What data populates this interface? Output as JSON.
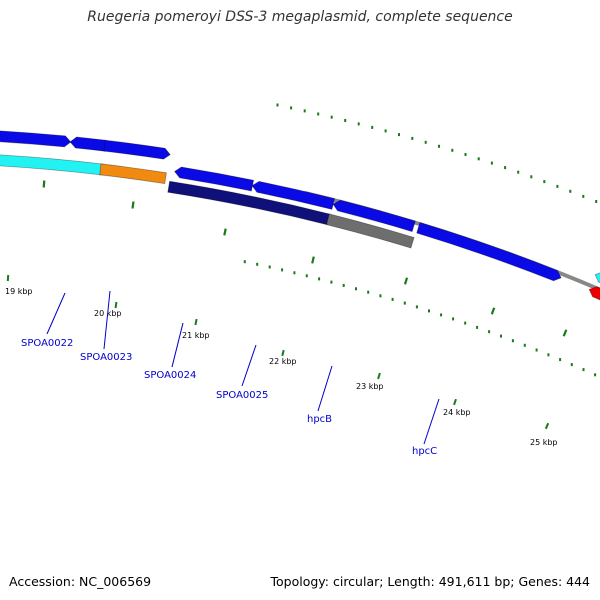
{
  "title": "Ruegeria pomeroyi DSS-3 megaplasmid, complete sequence",
  "footer": {
    "accession": "Accession: NC_006569",
    "topology": "Topology: circular; Length: 491,611 bp; Genes: 444"
  },
  "colors": {
    "backbone": "#888888",
    "tick": "#1a7a1a",
    "blue": "#0a0ae6",
    "cyan": "#22f2f2",
    "orange": "#f08a10",
    "navy": "#10107a",
    "gray": "#6e6e6e",
    "red": "#ee0000",
    "label": "#0000cc"
  },
  "scale_labels": [
    "19 kbp",
    "20 kbp",
    "21 kbp",
    "22 kbp",
    "23 kbp",
    "24 kbp",
    "25 kbp"
  ],
  "gene_labels": [
    "SPOA0022",
    "SPOA0023",
    "SPOA0024",
    "SPOA0025",
    "hpcB",
    "hpcC"
  ]
}
